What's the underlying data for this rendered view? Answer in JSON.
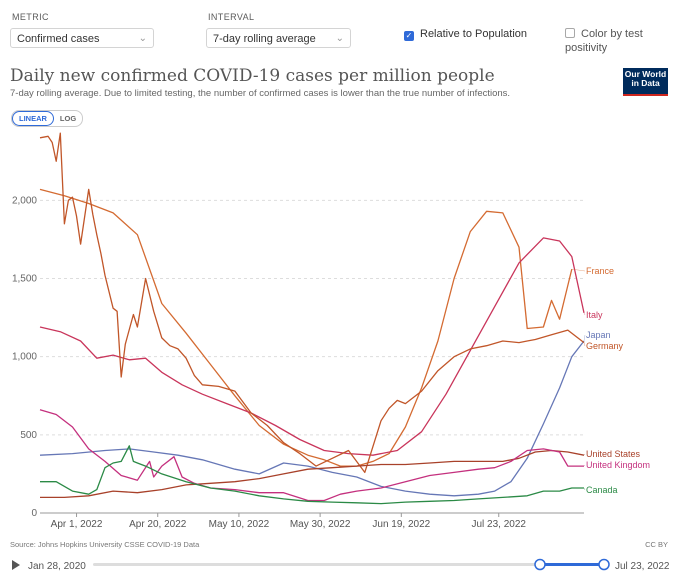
{
  "controls": {
    "metric_label": "METRIC",
    "metric_value": "Confirmed cases",
    "interval_label": "INTERVAL",
    "interval_value": "7-day rolling average",
    "relative_label": "Relative to Population",
    "relative_checked": true,
    "color_label": "Color by test positivity",
    "color_checked": false
  },
  "logo": {
    "line1": "Our World",
    "line2": "in Data"
  },
  "scale": {
    "linear": "LINEAR",
    "log": "LOG"
  },
  "footer": {
    "source": "Source: Johns Hopkins University CSSE COVID-19 Data",
    "license": "CC BY"
  },
  "timeline": {
    "start": "Jan 28, 2020",
    "end": "Jul 23, 2022"
  },
  "chart_data": {
    "type": "line",
    "title": "Daily new confirmed COVID-19 cases per million people",
    "subtitle": "7-day rolling average. Due to limited testing, the number of confirmed cases is lower than the true number of infections.",
    "xlabel": "",
    "ylabel": "",
    "x_start": "2022-03-23",
    "x_end": "2022-07-23",
    "ylim": [
      0,
      2450
    ],
    "y_ticks": [
      0,
      500,
      1000,
      1500,
      2000
    ],
    "y_tick_labels": [
      "0",
      "500",
      "1,000",
      "1,500",
      "2,000"
    ],
    "x_ticks": [
      9,
      29,
      49,
      69,
      89,
      113
    ],
    "x_tick_labels": [
      "Apr 1, 2022",
      "Apr 20, 2022",
      "May 10, 2022",
      "May 30, 2022",
      "Jun 19, 2022",
      "Jul 23, 2022"
    ],
    "grid": true,
    "series": [
      {
        "name": "France",
        "color": "#d46b32",
        "points": [
          [
            0,
            2070
          ],
          [
            6,
            2030
          ],
          [
            12,
            1980
          ],
          [
            18,
            1920
          ],
          [
            24,
            1780
          ],
          [
            30,
            1340
          ],
          [
            36,
            1150
          ],
          [
            42,
            950
          ],
          [
            48,
            750
          ],
          [
            54,
            560
          ],
          [
            60,
            440
          ],
          [
            66,
            370
          ],
          [
            70,
            340
          ],
          [
            74,
            300
          ],
          [
            78,
            300
          ],
          [
            82,
            330
          ],
          [
            86,
            380
          ],
          [
            90,
            550
          ],
          [
            94,
            800
          ],
          [
            98,
            1100
          ],
          [
            102,
            1500
          ],
          [
            106,
            1800
          ],
          [
            110,
            1930
          ],
          [
            114,
            1920
          ],
          [
            118,
            1700
          ],
          [
            120,
            1180
          ],
          [
            124,
            1190
          ],
          [
            126,
            1360
          ],
          [
            128,
            1240
          ],
          [
            131,
            1560
          ]
        ]
      },
      {
        "name": "Italy",
        "color": "#c9355b",
        "points": [
          [
            0,
            1190
          ],
          [
            5,
            1160
          ],
          [
            10,
            1100
          ],
          [
            14,
            990
          ],
          [
            18,
            1010
          ],
          [
            22,
            980
          ],
          [
            26,
            990
          ],
          [
            30,
            900
          ],
          [
            35,
            820
          ],
          [
            40,
            760
          ],
          [
            46,
            700
          ],
          [
            52,
            640
          ],
          [
            58,
            560
          ],
          [
            64,
            470
          ],
          [
            70,
            400
          ],
          [
            76,
            380
          ],
          [
            82,
            370
          ],
          [
            88,
            400
          ],
          [
            94,
            520
          ],
          [
            100,
            760
          ],
          [
            106,
            1040
          ],
          [
            112,
            1320
          ],
          [
            118,
            1600
          ],
          [
            124,
            1760
          ],
          [
            128,
            1740
          ],
          [
            131,
            1640
          ],
          [
            134,
            1280
          ]
        ]
      },
      {
        "name": "Japan",
        "color": "#6677b6",
        "points": [
          [
            0,
            370
          ],
          [
            8,
            380
          ],
          [
            16,
            400
          ],
          [
            22,
            410
          ],
          [
            28,
            390
          ],
          [
            34,
            370
          ],
          [
            40,
            340
          ],
          [
            48,
            280
          ],
          [
            54,
            250
          ],
          [
            60,
            320
          ],
          [
            66,
            300
          ],
          [
            72,
            260
          ],
          [
            78,
            230
          ],
          [
            84,
            170
          ],
          [
            90,
            140
          ],
          [
            96,
            120
          ],
          [
            102,
            110
          ],
          [
            108,
            120
          ],
          [
            112,
            140
          ],
          [
            116,
            200
          ],
          [
            120,
            350
          ],
          [
            124,
            570
          ],
          [
            128,
            800
          ],
          [
            131,
            1000
          ],
          [
            134,
            1100
          ]
        ]
      },
      {
        "name": "Germany",
        "color": "#c15629",
        "points": [
          [
            0,
            2400
          ],
          [
            2,
            2410
          ],
          [
            3,
            2370
          ],
          [
            4,
            2250
          ],
          [
            5,
            2430
          ],
          [
            6,
            1850
          ],
          [
            7,
            2000
          ],
          [
            8,
            2020
          ],
          [
            9,
            1900
          ],
          [
            10,
            1720
          ],
          [
            12,
            2070
          ],
          [
            13,
            1910
          ],
          [
            14,
            1780
          ],
          [
            15,
            1660
          ],
          [
            16,
            1520
          ],
          [
            18,
            1310
          ],
          [
            19,
            1290
          ],
          [
            20,
            870
          ],
          [
            21,
            1080
          ],
          [
            23,
            1270
          ],
          [
            24,
            1190
          ],
          [
            26,
            1500
          ],
          [
            28,
            1290
          ],
          [
            30,
            1120
          ],
          [
            32,
            1070
          ],
          [
            34,
            1050
          ],
          [
            36,
            990
          ],
          [
            38,
            880
          ],
          [
            40,
            820
          ],
          [
            44,
            810
          ],
          [
            48,
            780
          ],
          [
            52,
            640
          ],
          [
            56,
            560
          ],
          [
            60,
            450
          ],
          [
            64,
            380
          ],
          [
            68,
            300
          ],
          [
            72,
            350
          ],
          [
            76,
            400
          ],
          [
            80,
            260
          ],
          [
            84,
            590
          ],
          [
            86,
            670
          ],
          [
            88,
            720
          ],
          [
            90,
            700
          ],
          [
            94,
            780
          ],
          [
            98,
            910
          ],
          [
            102,
            1000
          ],
          [
            106,
            1050
          ],
          [
            110,
            1070
          ],
          [
            114,
            1100
          ],
          [
            118,
            1090
          ],
          [
            120,
            1100
          ],
          [
            122,
            1110
          ],
          [
            126,
            1140
          ],
          [
            130,
            1170
          ],
          [
            134,
            1090
          ]
        ]
      },
      {
        "name": "United States",
        "color": "#a8412a",
        "points": [
          [
            0,
            100
          ],
          [
            6,
            100
          ],
          [
            12,
            110
          ],
          [
            18,
            140
          ],
          [
            24,
            130
          ],
          [
            30,
            150
          ],
          [
            36,
            180
          ],
          [
            42,
            190
          ],
          [
            48,
            200
          ],
          [
            54,
            220
          ],
          [
            60,
            250
          ],
          [
            66,
            280
          ],
          [
            72,
            290
          ],
          [
            78,
            300
          ],
          [
            84,
            310
          ],
          [
            90,
            310
          ],
          [
            96,
            320
          ],
          [
            102,
            330
          ],
          [
            108,
            330
          ],
          [
            114,
            330
          ],
          [
            118,
            350
          ],
          [
            122,
            390
          ],
          [
            126,
            400
          ],
          [
            130,
            390
          ],
          [
            134,
            370
          ]
        ]
      },
      {
        "name": "United Kingdom",
        "color": "#c4307e",
        "points": [
          [
            0,
            660
          ],
          [
            4,
            630
          ],
          [
            8,
            550
          ],
          [
            12,
            410
          ],
          [
            16,
            330
          ],
          [
            20,
            240
          ],
          [
            24,
            210
          ],
          [
            27,
            330
          ],
          [
            28,
            230
          ],
          [
            30,
            300
          ],
          [
            33,
            360
          ],
          [
            35,
            230
          ],
          [
            38,
            190
          ],
          [
            42,
            160
          ],
          [
            48,
            150
          ],
          [
            54,
            130
          ],
          [
            60,
            130
          ],
          [
            66,
            80
          ],
          [
            70,
            80
          ],
          [
            74,
            120
          ],
          [
            78,
            140
          ],
          [
            84,
            160
          ],
          [
            90,
            200
          ],
          [
            96,
            240
          ],
          [
            102,
            260
          ],
          [
            108,
            280
          ],
          [
            112,
            290
          ],
          [
            116,
            330
          ],
          [
            120,
            400
          ],
          [
            124,
            410
          ],
          [
            128,
            390
          ],
          [
            130,
            300
          ],
          [
            134,
            300
          ]
        ]
      },
      {
        "name": "Canada",
        "color": "#2b8a46",
        "points": [
          [
            0,
            200
          ],
          [
            4,
            200
          ],
          [
            8,
            140
          ],
          [
            12,
            120
          ],
          [
            14,
            150
          ],
          [
            16,
            290
          ],
          [
            18,
            320
          ],
          [
            20,
            330
          ],
          [
            22,
            430
          ],
          [
            23,
            330
          ],
          [
            24,
            320
          ],
          [
            26,
            300
          ],
          [
            30,
            250
          ],
          [
            36,
            200
          ],
          [
            42,
            160
          ],
          [
            48,
            140
          ],
          [
            54,
            110
          ],
          [
            60,
            90
          ],
          [
            66,
            75
          ],
          [
            72,
            70
          ],
          [
            78,
            65
          ],
          [
            84,
            60
          ],
          [
            90,
            70
          ],
          [
            96,
            75
          ],
          [
            102,
            80
          ],
          [
            108,
            90
          ],
          [
            114,
            100
          ],
          [
            120,
            110
          ],
          [
            124,
            140
          ],
          [
            128,
            140
          ],
          [
            131,
            160
          ],
          [
            134,
            160
          ]
        ]
      }
    ]
  }
}
